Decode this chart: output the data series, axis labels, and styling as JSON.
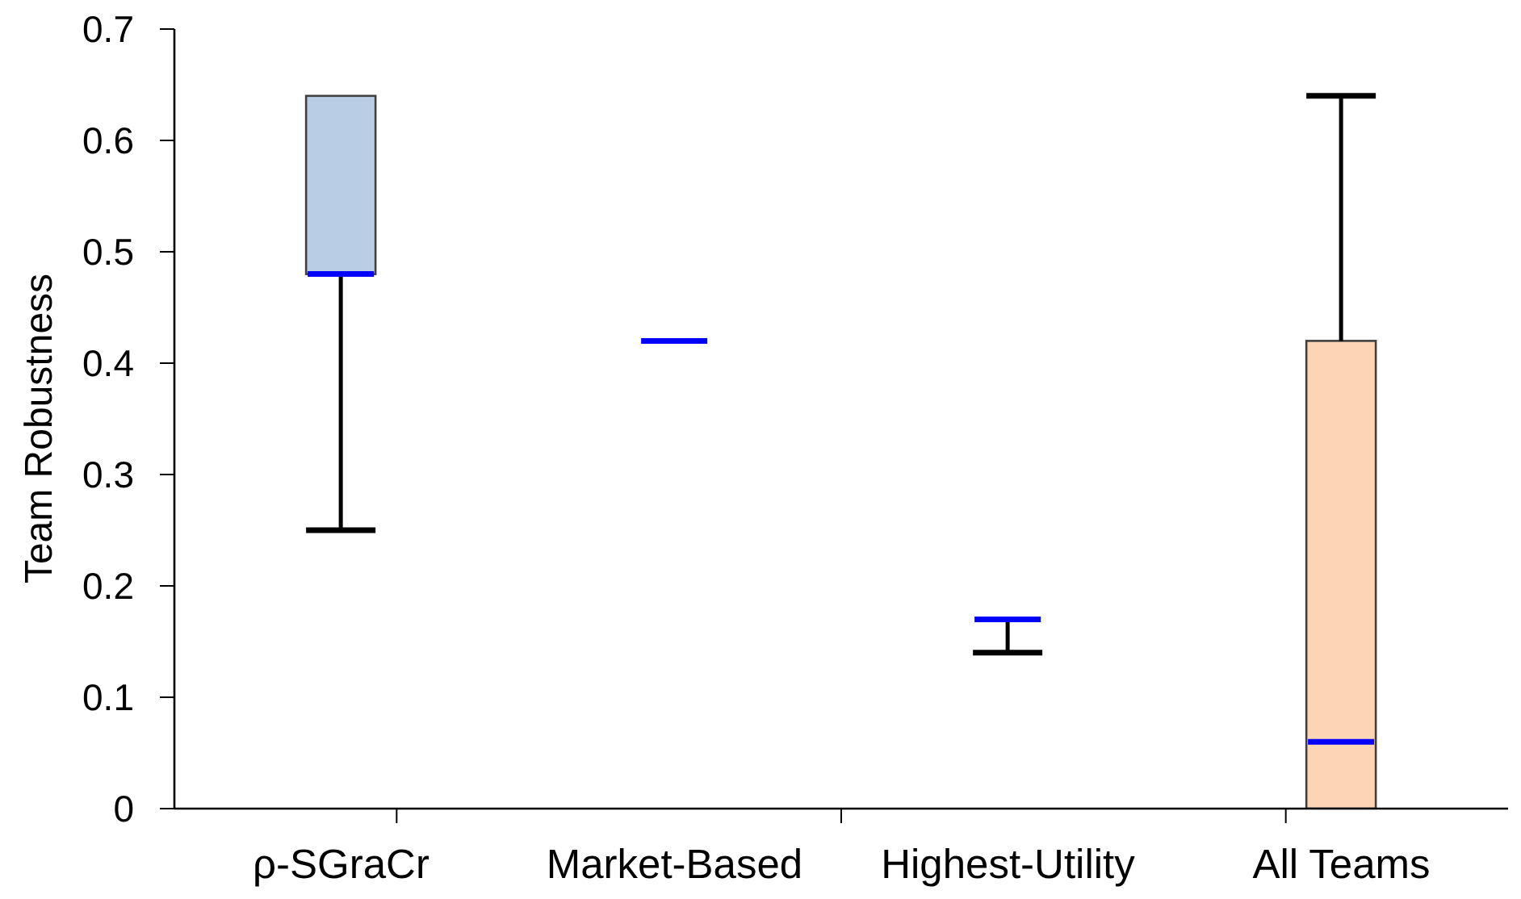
{
  "chart_data": {
    "type": "box",
    "ylabel": "Team Robustness",
    "categories": [
      "ρ-SGraCr",
      "Market-Based",
      "Highest-Utility",
      "All Teams"
    ],
    "boxes": [
      {
        "low": 0.25,
        "q1": 0.48,
        "median": 0.48,
        "q3": 0.64,
        "high": 0.64
      },
      {
        "low": 0.42,
        "q1": 0.42,
        "median": 0.42,
        "q3": 0.42,
        "high": 0.42
      },
      {
        "low": 0.14,
        "q1": 0.17,
        "median": 0.17,
        "q3": 0.17,
        "high": 0.17
      },
      {
        "low": 0,
        "q1": 0,
        "median": 0.06,
        "q3": 0.42,
        "high": 0.64
      }
    ],
    "colors": [
      "#b9cde5",
      null,
      null,
      "#fcd5b5"
    ],
    "ylim": [
      0,
      0.7
    ],
    "yticks": [
      0,
      0.1,
      0.2,
      0.3,
      0.4,
      0.5,
      0.6,
      0.7
    ]
  }
}
